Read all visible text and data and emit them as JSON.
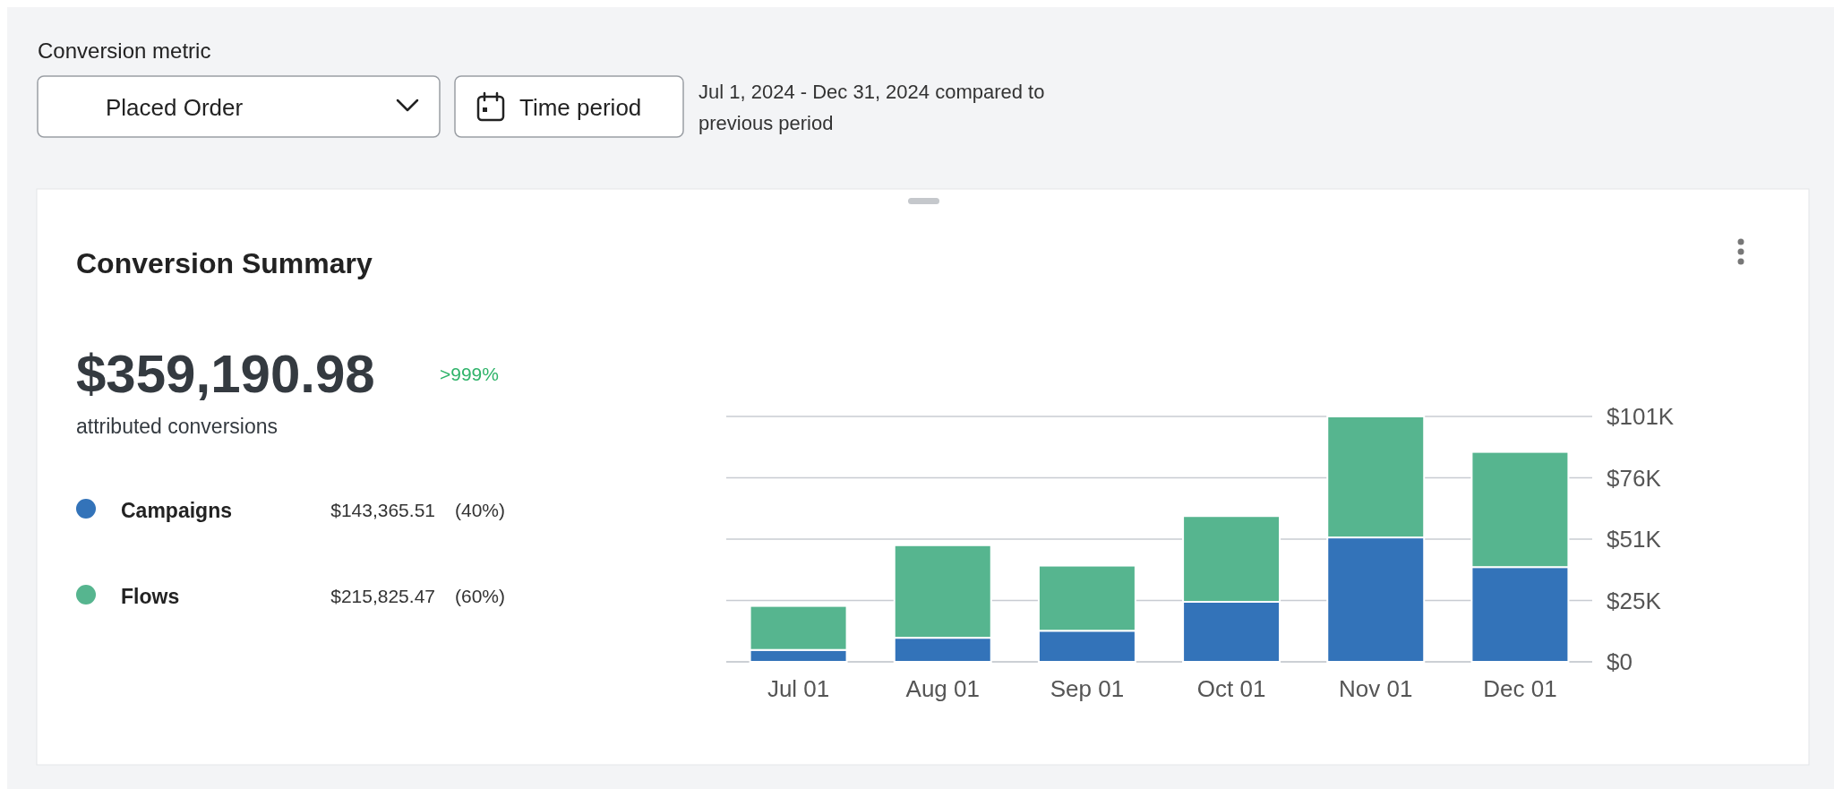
{
  "chart_data": {
    "type": "bar",
    "title": "Conversion Summary",
    "stacked": true,
    "categories": [
      "Jul 01",
      "Aug 01",
      "Sep 01",
      "Oct 01",
      "Nov 01",
      "Dec 01"
    ],
    "series": [
      {
        "name": "Campaigns",
        "color": "#3373b9",
        "values": [
          4.9,
          9.9,
          12.8,
          24.7,
          51.2,
          39.0
        ]
      },
      {
        "name": "Flows",
        "color": "#56b58f",
        "values": [
          18.1,
          38.1,
          26.8,
          35.3,
          49.8,
          47.4
        ]
      }
    ],
    "ylim": [
      0,
      101
    ],
    "yticks": [
      {
        "value": 0,
        "label": "$0"
      },
      {
        "value": 25.25,
        "label": "$25K"
      },
      {
        "value": 50.5,
        "label": "$51K"
      },
      {
        "value": 75.75,
        "label": "$76K"
      },
      {
        "value": 101,
        "label": "$101K"
      }
    ],
    "grid": "y",
    "legend": "left",
    "annotations": [
      "Conversion metric",
      "Placed Order",
      "Time period",
      "Jul 1, 2024 - Dec 31, 2024 compared to previous period",
      "$359,190.98",
      ">999%",
      "attributed conversions",
      "$143,365.51",
      "(40%)",
      "$215,825.47",
      "(60%)"
    ]
  }
}
